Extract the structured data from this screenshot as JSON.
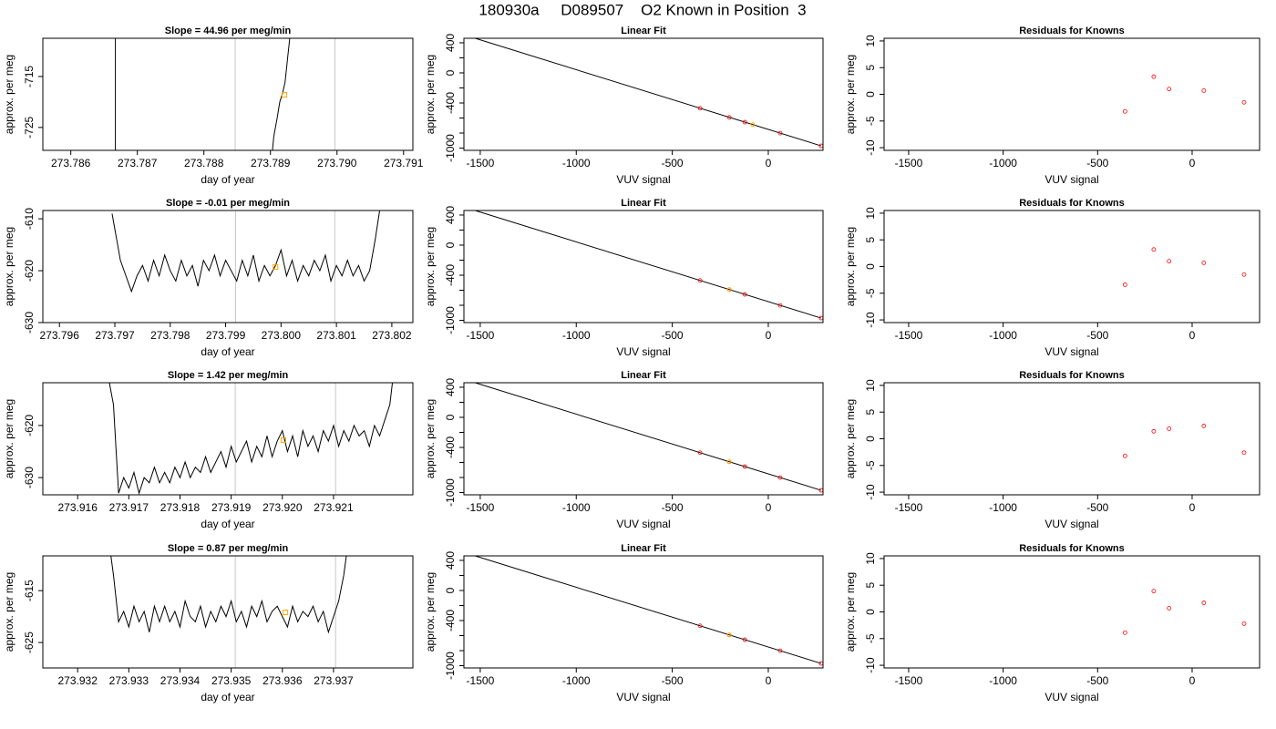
{
  "title": "180930a     D089507    O2 Known in Position  3",
  "chart_data": [
    {
      "type": "line",
      "title": "Slope =  44.96  per meg/min",
      "x_label": "day of year",
      "y_label": "approx. per meg",
      "xlim": [
        273.78558,
        273.79114
      ],
      "ylim": [
        -729.5,
        -707.5
      ],
      "xticks": [
        273.786,
        273.787,
        273.788,
        273.789,
        {
          "value": 273.79,
          "label": "273.790"
        },
        273.791
      ],
      "yticks": [
        -715,
        -725
      ],
      "x": [
        273.78903,
        273.78905,
        273.7891,
        273.78914,
        273.78918,
        273.78922,
        273.78926,
        273.78929
      ],
      "values": [
        -729.5,
        -726.8,
        -723.2,
        -720,
        -718.4,
        -716.1,
        -711.1,
        -707.5
      ],
      "color": "#000000",
      "vlines": [
        {
          "x": 273.78667,
          "color": "#000000"
        },
        {
          "x": 273.78847,
          "color": "#c8c8c8"
        },
        {
          "x": 273.78997,
          "color": "#c8c8c8"
        }
      ],
      "highlight": {
        "x": 273.78921,
        "y": -718.6,
        "color": "#ffa500"
      }
    },
    {
      "type": "fit",
      "title": "Linear Fit",
      "x_label": "VUV signal",
      "y_label": "approx. per meg",
      "xlim": [
        -1585,
        285
      ],
      "ylim": [
        -1030,
        460
      ],
      "xticks": [
        -1500,
        -1000,
        -500,
        0
      ],
      "yticks": [
        400,
        0,
        -400,
        -1000
      ],
      "minor_yticks": [
        200,
        -200,
        -600,
        -800
      ],
      "x": [
        -355,
        -203,
        -122,
        62,
        275
      ],
      "values": [
        -470,
        -591,
        -655,
        -801,
        -970
      ],
      "color": "#ff0000",
      "fit_line": {
        "x": [
          -1530,
          275
        ],
        "y": [
          463,
          -970
        ],
        "color": "#000000"
      },
      "highlight": {
        "x": -81,
        "y": -688,
        "color": "#ffa500"
      }
    },
    {
      "type": "scatter",
      "title": "Residuals for Knowns",
      "x_label": "VUV signal",
      "y_label": "approx. per meg",
      "xlim": [
        -1630,
        357
      ],
      "ylim": [
        -10.5,
        10.5
      ],
      "xticks": [
        -1500,
        -1000,
        -500,
        0
      ],
      "yticks": [
        10,
        5,
        0,
        -5,
        -10
      ],
      "x": [
        -355,
        -203,
        -122,
        62,
        275
      ],
      "values": [
        -3.2,
        3.3,
        1.0,
        0.7,
        -1.5
      ],
      "color": "#ff0000"
    },
    {
      "type": "line",
      "title": "Slope =  -0.01  per meg/min",
      "x_label": "day of year",
      "y_label": "approx. per meg",
      "xlim": [
        273.7957,
        273.80238
      ],
      "ylim": [
        -630,
        -608.4
      ],
      "xticks": [
        273.796,
        273.797,
        273.798,
        273.799,
        {
          "value": 273.8,
          "label": "273.800"
        },
        273.801,
        273.802
      ],
      "yticks": [
        -610,
        -620,
        -630
      ],
      "x": [
        273.79695,
        273.797,
        273.7971,
        273.7972,
        273.7973,
        273.7974,
        273.7975,
        273.7976,
        273.7977,
        273.7978,
        273.7979,
        273.798,
        273.7981,
        273.7982,
        273.7983,
        273.7984,
        273.7985,
        273.7986,
        273.7987,
        273.7988,
        273.7989,
        273.799,
        273.7991,
        273.7992,
        273.7993,
        273.7994,
        273.7995,
        273.7996,
        273.7997,
        273.7998,
        273.7999,
        273.8,
        273.8001,
        273.8002,
        273.8003,
        273.8004,
        273.8005,
        273.8006,
        273.8007,
        273.8008,
        273.8009,
        273.801,
        273.8011,
        273.8012,
        273.8013,
        273.8014,
        273.8015,
        273.8016,
        273.8017,
        273.80178
      ],
      "values": [
        -609,
        -612,
        -618,
        -621,
        -624,
        -621,
        -619,
        -622,
        -618,
        -621,
        -617,
        -620,
        -622,
        -618,
        -621,
        -619,
        -623,
        -618,
        -620,
        -617,
        -621,
        -618,
        -620,
        -622,
        -618,
        -621,
        -617,
        -622,
        -619,
        -621,
        -619,
        -616,
        -621,
        -618,
        -622,
        -619,
        -621,
        -618,
        -620,
        -617,
        -622,
        -619,
        -621,
        -618,
        -621,
        -619,
        -622,
        -620,
        -614,
        -608.4
      ],
      "color": "#000000",
      "vlines": [
        {
          "x": 273.79918,
          "color": "#c8c8c8"
        },
        {
          "x": 273.80097,
          "color": "#c8c8c8"
        }
      ],
      "highlight": {
        "x": 273.7999,
        "y": -619.3,
        "color": "#ffa500"
      }
    },
    {
      "type": "fit",
      "title": "Linear Fit",
      "x_label": "VUV signal",
      "y_label": "approx. per meg",
      "xlim": [
        -1585,
        285
      ],
      "ylim": [
        -1030,
        460
      ],
      "xticks": [
        -1500,
        -1000,
        -500,
        0
      ],
      "yticks": [
        400,
        0,
        -400,
        -1000
      ],
      "minor_yticks": [
        200,
        -200,
        -600,
        -800
      ],
      "x": [
        -355,
        -203,
        -122,
        62,
        275
      ],
      "values": [
        -470,
        -591,
        -655,
        -801,
        -970
      ],
      "color": "#ff0000",
      "fit_line": {
        "x": [
          -1530,
          275
        ],
        "y": [
          463,
          -970
        ],
        "color": "#000000"
      },
      "highlight": {
        "x": -203,
        "y": -591,
        "color": "#ffa500"
      }
    },
    {
      "type": "scatter",
      "title": "Residuals for Knowns",
      "x_label": "VUV signal",
      "y_label": "approx. per meg",
      "xlim": [
        -1630,
        357
      ],
      "ylim": [
        -10.5,
        10.5
      ],
      "xticks": [
        -1500,
        -1000,
        -500,
        0
      ],
      "yticks": [
        10,
        5,
        0,
        -5,
        -10
      ],
      "x": [
        -355,
        -203,
        -122,
        62,
        275
      ],
      "values": [
        -3.4,
        3.2,
        1.0,
        0.7,
        -1.5
      ],
      "color": "#ff0000"
    },
    {
      "type": "line",
      "title": "Slope =  1.42  per meg/min",
      "x_label": "day of year",
      "y_label": "approx. per meg",
      "xlim": [
        273.91532,
        273.92255
      ],
      "ylim": [
        -633.3,
        -611.8
      ],
      "xticks": [
        273.916,
        273.917,
        273.918,
        273.919,
        {
          "value": 273.92,
          "label": "273.920"
        },
        273.921
      ],
      "yticks": [
        -620,
        -630
      ],
      "x": [
        273.91662,
        273.9167,
        273.9168,
        273.9169,
        273.917,
        273.9171,
        273.9172,
        273.9173,
        273.9174,
        273.9175,
        273.9176,
        273.9177,
        273.9178,
        273.9179,
        273.918,
        273.9181,
        273.9182,
        273.9183,
        273.9184,
        273.9185,
        273.9186,
        273.9187,
        273.9188,
        273.9189,
        273.919,
        273.9191,
        273.9192,
        273.9193,
        273.9194,
        273.9195,
        273.9196,
        273.9197,
        273.9198,
        273.9199,
        273.92,
        273.9201,
        273.9202,
        273.9203,
        273.9204,
        273.9205,
        273.9206,
        273.9207,
        273.9208,
        273.9209,
        273.921,
        273.9211,
        273.9212,
        273.9213,
        273.9214,
        273.9215,
        273.9216,
        273.9217,
        273.9218,
        273.9219,
        273.922,
        273.9221,
        273.92215
      ],
      "values": [
        -611.8,
        -616,
        -633,
        -630,
        -632,
        -629,
        -633,
        -630,
        -631,
        -628,
        -631,
        -629,
        -631,
        -628,
        -630,
        -627,
        -630,
        -628,
        -629,
        -626,
        -629,
        -627,
        -625,
        -628,
        -624,
        -627,
        -625,
        -623,
        -627,
        -624,
        -626,
        -622,
        -626,
        -623,
        -621,
        -625,
        -622,
        -626,
        -621,
        -624,
        -622,
        -625,
        -621,
        -623,
        -620,
        -624,
        -621,
        -623,
        -620,
        -622,
        -621,
        -624,
        -620,
        -622,
        -619,
        -616,
        -611.8
      ],
      "color": "#000000",
      "vlines": [
        {
          "x": 273.91908,
          "color": "#c8c8c8"
        },
        {
          "x": 273.92104,
          "color": "#c8c8c8"
        }
      ],
      "highlight": {
        "x": 273.92002,
        "y": -622.8,
        "color": "#ffa500"
      }
    },
    {
      "type": "fit",
      "title": "Linear Fit",
      "x_label": "VUV signal",
      "y_label": "approx. per meg",
      "xlim": [
        -1585,
        285
      ],
      "ylim": [
        -1030,
        460
      ],
      "xticks": [
        -1500,
        -1000,
        -500,
        0
      ],
      "yticks": [
        400,
        0,
        -400,
        -1000
      ],
      "minor_yticks": [
        200,
        -200,
        -600,
        -800
      ],
      "x": [
        -355,
        -203,
        -122,
        62,
        275
      ],
      "values": [
        -470,
        -591,
        -655,
        -801,
        -970
      ],
      "color": "#ff0000",
      "fit_line": {
        "x": [
          -1530,
          275
        ],
        "y": [
          463,
          -970
        ],
        "color": "#000000"
      },
      "highlight": {
        "x": -203,
        "y": -591,
        "color": "#ffa500"
      }
    },
    {
      "type": "scatter",
      "title": "Residuals for Knowns",
      "x_label": "VUV signal",
      "y_label": "approx. per meg",
      "xlim": [
        -1630,
        357
      ],
      "ylim": [
        -10.5,
        10.5
      ],
      "xticks": [
        -1500,
        -1000,
        -500,
        0
      ],
      "yticks": [
        10,
        5,
        0,
        -5,
        -10
      ],
      "x": [
        -355,
        -203,
        -122,
        62,
        275
      ],
      "values": [
        -3.2,
        1.4,
        1.9,
        2.4,
        -2.6
      ],
      "color": "#ff0000"
    },
    {
      "type": "line",
      "title": "Slope =  0.87  per meg/min",
      "x_label": "day of year",
      "y_label": "approx. per meg",
      "xlim": [
        273.93132,
        273.93855
      ],
      "ylim": [
        -629.9,
        -608.3
      ],
      "xticks": [
        273.932,
        273.933,
        273.934,
        273.935,
        273.936,
        273.937
      ],
      "yticks": [
        -615,
        -625
      ],
      "x": [
        273.93265,
        273.9327,
        273.9328,
        273.9329,
        273.933,
        273.9331,
        273.9332,
        273.9333,
        273.9334,
        273.9335,
        273.9336,
        273.9337,
        273.9338,
        273.9339,
        273.934,
        273.9341,
        273.9342,
        273.9343,
        273.9344,
        273.9345,
        273.9346,
        273.9347,
        273.9348,
        273.9349,
        273.935,
        273.9351,
        273.9352,
        273.9353,
        273.9354,
        273.9355,
        273.9356,
        273.9357,
        273.9358,
        273.9359,
        273.936,
        273.9361,
        273.9362,
        273.9363,
        273.9364,
        273.9365,
        273.9366,
        273.9367,
        273.9368,
        273.9369,
        273.937,
        273.9371,
        273.9372,
        273.93725
      ],
      "values": [
        -608.3,
        -612,
        -621,
        -619,
        -622,
        -618,
        -621,
        -619,
        -623,
        -618,
        -621,
        -618,
        -621,
        -619,
        -622,
        -617,
        -620,
        -621,
        -618,
        -622,
        -619,
        -621,
        -618,
        -620,
        -617,
        -621,
        -619,
        -622,
        -618,
        -620,
        -617,
        -621,
        -619,
        -618,
        -620,
        -622,
        -618,
        -621,
        -619,
        -620,
        -618,
        -621,
        -619,
        -623,
        -620,
        -617,
        -612,
        -608.3
      ],
      "color": "#000000",
      "vlines": [
        {
          "x": 273.93508,
          "color": "#c8c8c8"
        },
        {
          "x": 273.93704,
          "color": "#c8c8c8"
        }
      ],
      "highlight": {
        "x": 273.93606,
        "y": -619.2,
        "color": "#ffa500"
      }
    },
    {
      "type": "fit",
      "title": "Linear Fit",
      "x_label": "VUV signal",
      "y_label": "approx. per meg",
      "xlim": [
        -1585,
        285
      ],
      "ylim": [
        -1030,
        460
      ],
      "xticks": [
        -1500,
        -1000,
        -500,
        0
      ],
      "yticks": [
        400,
        0,
        -400,
        -1000
      ],
      "minor_yticks": [
        200,
        -200,
        -600,
        -800
      ],
      "x": [
        -355,
        -203,
        -122,
        62,
        275
      ],
      "values": [
        -470,
        -591,
        -655,
        -801,
        -970
      ],
      "color": "#ff0000",
      "fit_line": {
        "x": [
          -1530,
          275
        ],
        "y": [
          463,
          -970
        ],
        "color": "#000000"
      },
      "highlight": {
        "x": -203,
        "y": -591,
        "color": "#ffa500"
      }
    },
    {
      "type": "scatter",
      "title": "Residuals for Knowns",
      "x_label": "VUV signal",
      "y_label": "approx. per meg",
      "xlim": [
        -1630,
        357
      ],
      "ylim": [
        -10.5,
        10.5
      ],
      "xticks": [
        -1500,
        -1000,
        -500,
        0
      ],
      "yticks": [
        10,
        5,
        0,
        -5,
        -10
      ],
      "x": [
        -355,
        -203,
        -122,
        62,
        275
      ],
      "values": [
        -3.9,
        3.9,
        0.7,
        1.7,
        -2.2
      ],
      "color": "#ff0000"
    }
  ]
}
